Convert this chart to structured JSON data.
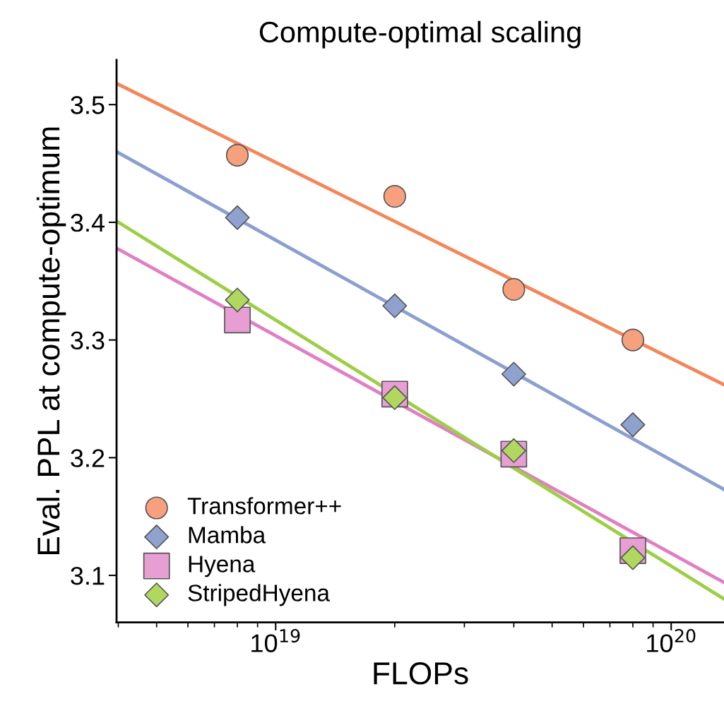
{
  "chart_data": {
    "type": "scatter",
    "title": "Compute-optimal scaling",
    "xlabel": "FLOPs",
    "ylabel": "Eval. PPL at compute-optimum",
    "log": "x",
    "legend": "bottom left",
    "grid": false,
    "xlim": [
      3.96e+18,
      1.36e+20
    ],
    "xticks": [
      {
        "value": 1e+19,
        "label": "10$^{19}$"
      },
      {
        "value": 1e+20,
        "label": "10$^{20}$"
      }
    ],
    "ylim": [
      3.06,
      3.538
    ],
    "yticks": [
      3.1,
      3.2,
      3.3,
      3.4,
      3.5
    ],
    "series": [
      {
        "name": "Transformer++",
        "color": "#f7a07e",
        "marker": "circle",
        "x": [
          8e+18,
          2e+19,
          4e+19,
          8e+19
        ],
        "values": [
          3.457,
          3.422,
          3.343,
          3.3
        ]
      },
      {
        "name": "Mamba",
        "color": "#8fa2cf",
        "marker": "diamond",
        "x": [
          8e+18,
          2e+19,
          4e+19,
          8e+19
        ],
        "values": [
          3.404,
          3.329,
          3.271,
          3.228
        ]
      },
      {
        "name": "Hyena",
        "color": "#e79fd3",
        "marker": "square",
        "x": [
          8e+18,
          2e+19,
          4e+19,
          8e+19
        ],
        "values": [
          3.317,
          3.254,
          3.203,
          3.121
        ]
      },
      {
        "name": "StripedHyena",
        "color": "#b1d85e",
        "marker": "diamond",
        "x": [
          8e+18,
          2e+19,
          4e+19,
          8e+19
        ],
        "values": [
          3.334,
          3.251,
          3.206,
          3.115
        ]
      },
      {
        "type": "line",
        "color": "#f4875a",
        "x": [
          3.96e+18,
          1.36e+20
        ],
        "values": [
          3.518,
          3.262
        ]
      },
      {
        "type": "line",
        "color": "#8b9fd0",
        "x": [
          3.96e+18,
          1.36e+20
        ],
        "values": [
          3.46,
          3.173
        ]
      },
      {
        "type": "line",
        "color": "#e07fc4",
        "x": [
          3.96e+18,
          1.36e+20
        ],
        "values": [
          3.378,
          3.094
        ]
      },
      {
        "type": "line",
        "color": "#9ccf45",
        "x": [
          3.96e+18,
          1.36e+20
        ],
        "values": [
          3.401,
          3.08
        ]
      }
    ]
  }
}
